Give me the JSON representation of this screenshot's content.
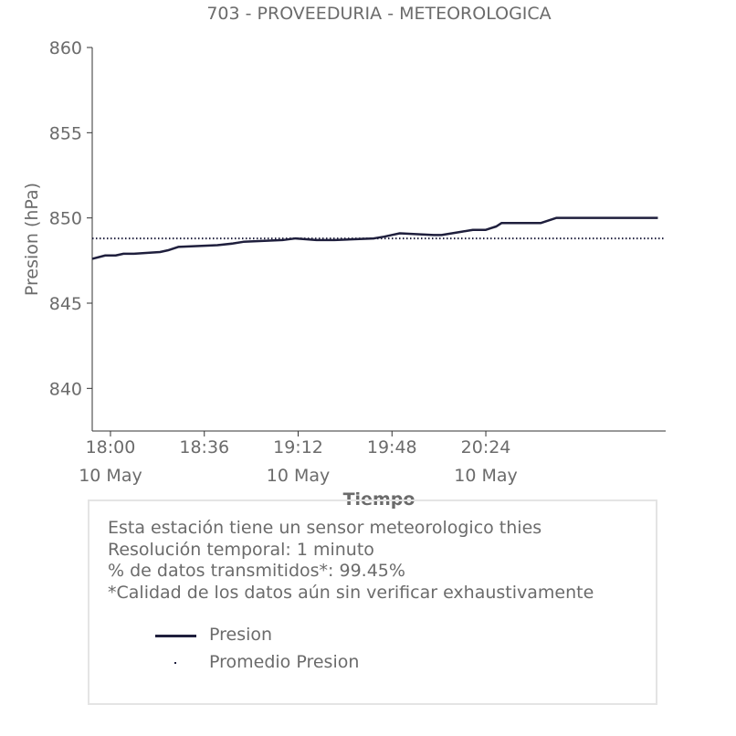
{
  "chart_data": {
    "type": "line",
    "title": "703 - PROVEEDURIA - METEOROLOGICA",
    "xlabel": "Tiempo",
    "ylabel": "Presion (hPa)",
    "ylim": [
      837.5,
      860
    ],
    "xlim": [
      "17:53",
      "21:33"
    ],
    "yticks": [
      840,
      845,
      850,
      855,
      860
    ],
    "xticks": [
      {
        "time": "18:00",
        "date": "10 May"
      },
      {
        "time": "18:36",
        "date": ""
      },
      {
        "time": "19:12",
        "date": "10 May"
      },
      {
        "time": "19:48",
        "date": ""
      },
      {
        "time": "20:24",
        "date": "10 May"
      }
    ],
    "grid": false,
    "series": [
      {
        "name": "Presion",
        "color": "#1f1f3d",
        "style": "solid",
        "x": [
          "17:53",
          "17:58",
          "18:02",
          "18:05",
          "18:09",
          "18:19",
          "18:22",
          "18:26",
          "18:41",
          "18:47",
          "18:51",
          "19:06",
          "19:11",
          "19:19",
          "19:26",
          "19:41",
          "19:45",
          "19:48",
          "19:51",
          "20:04",
          "20:07",
          "20:11",
          "20:15",
          "20:19",
          "20:24",
          "20:26",
          "20:28",
          "20:30",
          "20:45",
          "20:47",
          "20:49",
          "20:51",
          "21:00",
          "21:30"
        ],
        "y": [
          847.6,
          847.8,
          847.8,
          847.9,
          847.9,
          848.0,
          848.1,
          848.3,
          848.4,
          848.5,
          848.6,
          848.7,
          848.8,
          848.7,
          848.7,
          848.8,
          848.9,
          849.0,
          849.1,
          849.0,
          849.0,
          849.1,
          849.2,
          849.3,
          849.3,
          849.4,
          849.5,
          849.7,
          849.7,
          849.8,
          849.9,
          850.0,
          850.0,
          850.0
        ]
      },
      {
        "name": "Promedio Presion",
        "color": "#1f1f3d",
        "style": "dotted",
        "x": [
          "17:53",
          "21:33"
        ],
        "y": [
          848.8,
          848.8
        ]
      }
    ]
  },
  "info": {
    "lines": [
      "Esta estación tiene un sensor meteorologico thies",
      "Resolución temporal: 1 minuto",
      "% de datos transmitidos*: 99.45%",
      "*Calidad de los datos aún sin verificar exhaustivamente"
    ]
  },
  "legend": {
    "items": [
      {
        "label": "Presion"
      },
      {
        "label": "Promedio Presion"
      }
    ]
  }
}
